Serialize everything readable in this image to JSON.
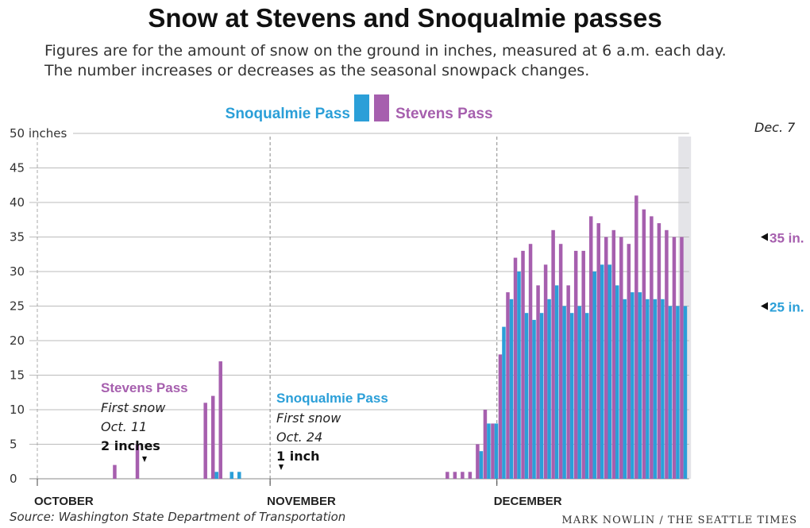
{
  "header": {
    "title": "Snow at Stevens and Snoqualmie passes",
    "subtitle_line1": "Figures are for the amount of snow on the ground in inches, measured at 6 a.m. each day.",
    "subtitle_line2": "The number increases or decreases as the seasonal snowpack changes."
  },
  "footer": {
    "source": "Source: Washington State Department of Transportation",
    "credit": "MARK NOWLIN / THE SEATTLE TIMES"
  },
  "colors": {
    "snoqualmie": "#2b9fd8",
    "stevens": "#a65fae",
    "grid": "#bbbbbb",
    "highlight": "#e4e4e8"
  },
  "chart_data": {
    "type": "bar",
    "legend": {
      "snoqualmie": "Snoqualmie Pass",
      "stevens": "Stevens Pass",
      "placement": "top-center"
    },
    "ylim": [
      0,
      50
    ],
    "yticks": [
      "0",
      "5",
      "10",
      "15",
      "20",
      "25",
      "30",
      "35",
      "40",
      "45",
      "50 inches"
    ],
    "month_labels": [
      "OCTOBER",
      "NOVEMBER",
      "DECEMBER"
    ],
    "end_date_label": "Dec. 7",
    "annotations": {
      "stevens_title": "Stevens Pass",
      "stevens_line1": "First snow",
      "stevens_line2": "Oct. 11",
      "stevens_amount": "2 inches",
      "snoqualmie_title": "Snoqualmie Pass",
      "snoqualmie_line1": "First snow",
      "snoqualmie_line2": "Oct. 24",
      "snoqualmie_amount": "1 inch",
      "stevens_end": "35 in.",
      "snoqualmie_end": "25 in."
    },
    "series": [
      {
        "name": "Stevens Pass",
        "values": [
          0,
          0,
          0,
          0,
          0,
          0,
          0,
          0,
          0,
          0,
          2,
          0,
          0,
          5,
          0,
          0,
          0,
          0,
          0,
          0,
          0,
          0,
          11,
          12,
          17,
          0,
          0,
          0,
          0,
          0,
          0,
          0,
          0,
          0,
          0,
          0,
          0,
          0,
          0,
          0,
          0,
          0,
          0,
          0,
          0,
          0,
          0,
          0,
          0,
          0,
          0,
          0,
          0,
          0,
          1,
          1,
          1,
          1,
          5,
          10,
          8,
          18,
          27,
          32,
          33,
          34,
          28,
          31,
          36,
          34,
          28,
          33,
          33,
          38,
          37,
          35,
          36,
          35,
          34,
          41,
          39,
          38,
          37,
          36,
          35,
          35
        ]
      },
      {
        "name": "Snoqualmie Pass",
        "values": [
          0,
          0,
          0,
          0,
          0,
          0,
          0,
          0,
          0,
          0,
          0,
          0,
          0,
          0,
          0,
          0,
          0,
          0,
          0,
          0,
          0,
          0,
          0,
          1,
          0,
          1,
          1,
          0,
          0,
          0,
          0,
          0,
          0,
          0,
          0,
          0,
          0,
          0,
          0,
          0,
          0,
          0,
          0,
          0,
          0,
          0,
          0,
          0,
          0,
          0,
          0,
          0,
          0,
          0,
          0,
          0,
          0,
          0,
          4,
          8,
          8,
          22,
          26,
          30,
          24,
          23,
          24,
          26,
          28,
          25,
          24,
          25,
          24,
          30,
          31,
          31,
          28,
          26,
          27,
          27,
          26,
          26,
          26,
          25,
          25,
          25
        ]
      }
    ]
  }
}
